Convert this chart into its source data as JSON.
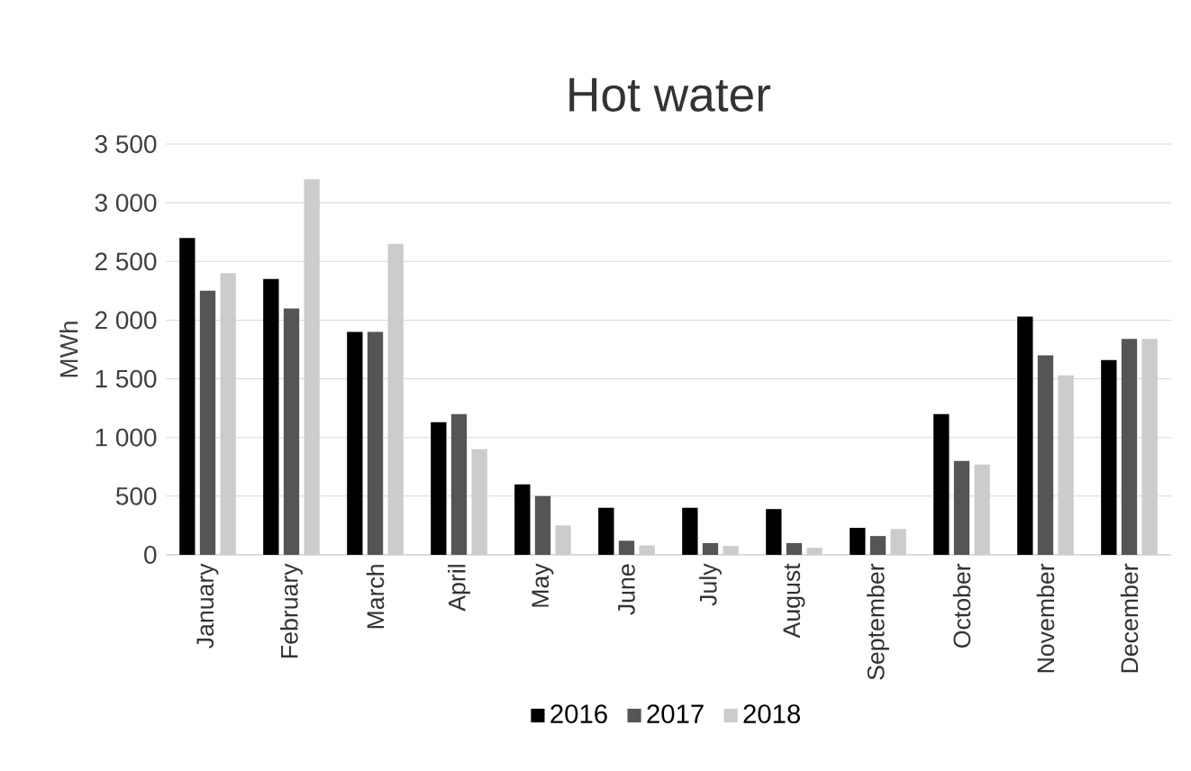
{
  "chart_data": {
    "type": "bar",
    "title": "Hot water",
    "ylabel": "MWh",
    "categories": [
      "January",
      "February",
      "March",
      "April",
      "May",
      "June",
      "July",
      "August",
      "September",
      "October",
      "November",
      "December"
    ],
    "series": [
      {
        "name": "2016",
        "color": "#000000",
        "values": [
          2700,
          2350,
          1900,
          1130,
          600,
          400,
          400,
          390,
          230,
          1200,
          2030,
          1660
        ]
      },
      {
        "name": "2017",
        "color": "#555555",
        "values": [
          2250,
          2100,
          1900,
          1200,
          500,
          120,
          100,
          100,
          160,
          800,
          1700,
          1840
        ]
      },
      {
        "name": "2018",
        "color": "#cccccc",
        "values": [
          2400,
          3200,
          2650,
          900,
          250,
          80,
          75,
          60,
          220,
          770,
          1530,
          1840
        ]
      }
    ],
    "ylim": [
      0,
      3500
    ],
    "yticks": [
      {
        "value": 0,
        "label": "0"
      },
      {
        "value": 500,
        "label": "500"
      },
      {
        "value": 1000,
        "label": "1 000"
      },
      {
        "value": 1500,
        "label": "1 500"
      },
      {
        "value": 2000,
        "label": "2 000"
      },
      {
        "value": 2500,
        "label": "2 500"
      },
      {
        "value": 3000,
        "label": "3 000"
      },
      {
        "value": 3500,
        "label": "3 500"
      }
    ],
    "grid": "y",
    "legend": "bottom"
  }
}
